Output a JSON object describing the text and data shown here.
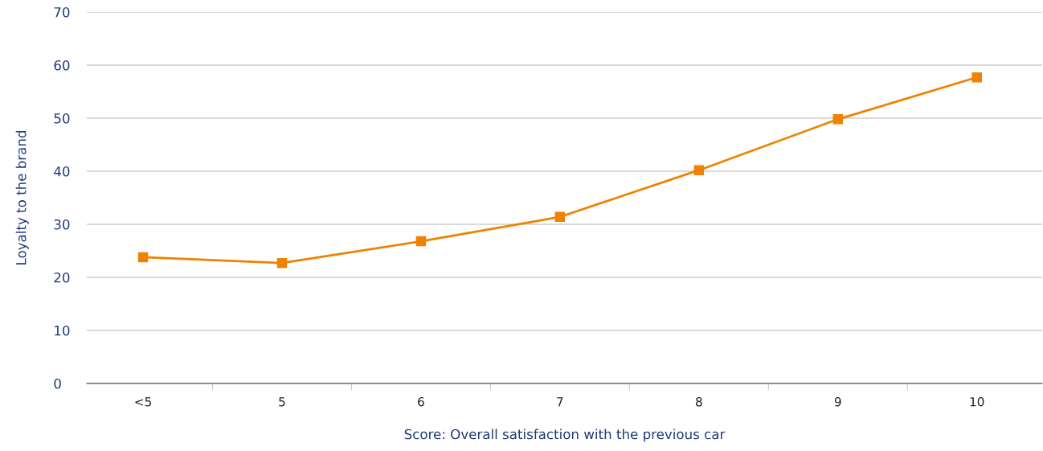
{
  "chart_data": {
    "type": "line",
    "xlabel": "Score: Overall satisfaction with the previous car",
    "ylabel": "Loyalty to the brand",
    "categories": [
      "<5",
      "5",
      "6",
      "7",
      "8",
      "9",
      "10"
    ],
    "series": [
      {
        "color": "#ef8200",
        "values": [
          23.8,
          22.7,
          26.8,
          31.4,
          40.2,
          49.8,
          57.7
        ]
      }
    ],
    "ylim": [
      0,
      70
    ],
    "yticks": [
      0,
      10,
      20,
      30,
      40,
      50,
      60,
      70
    ],
    "grid": "y",
    "marker": "square",
    "line_style": "solid"
  }
}
